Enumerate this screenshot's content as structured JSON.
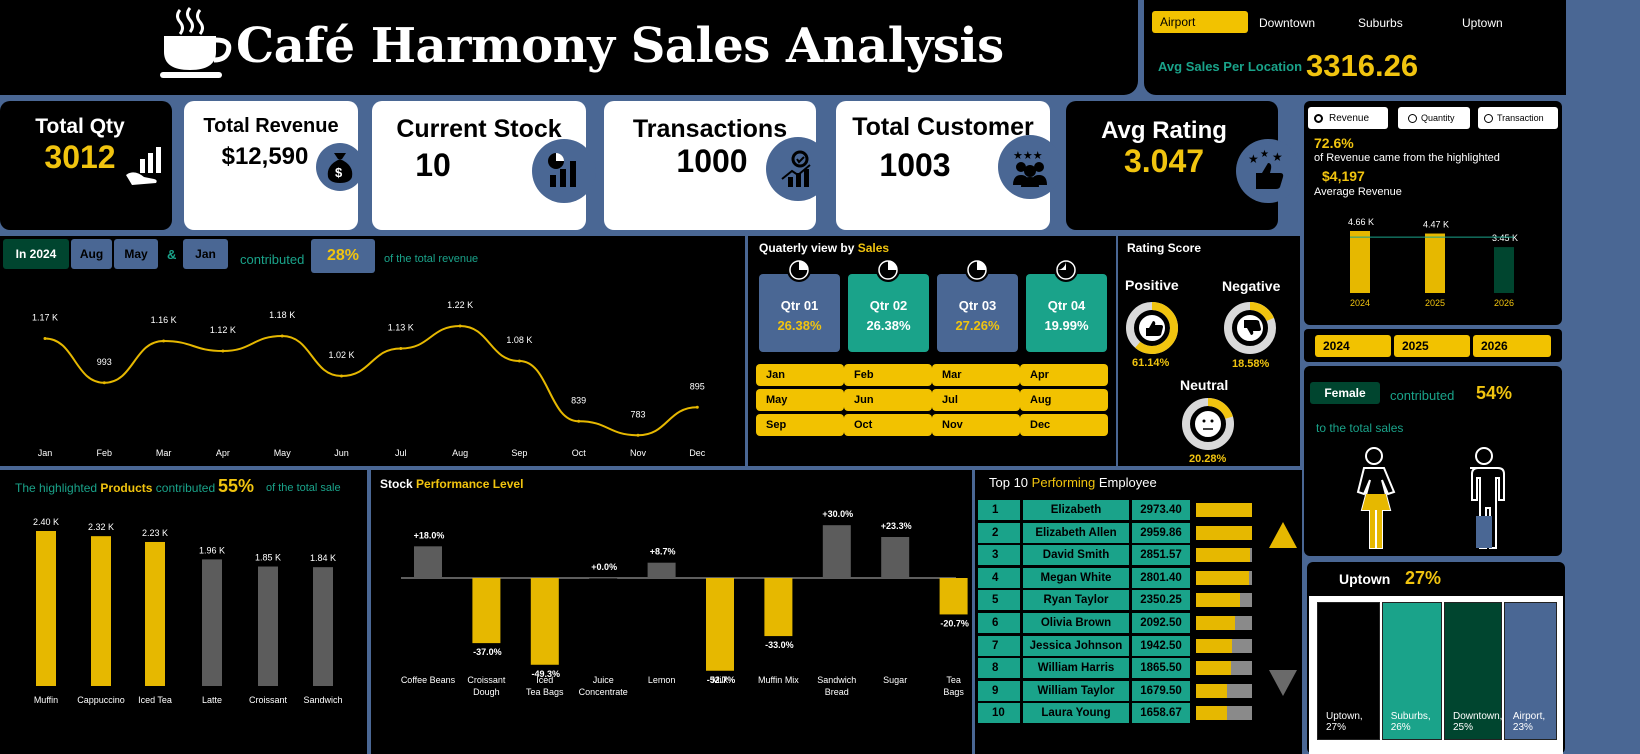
{
  "header": {
    "title": "Café Harmony Sales Analysis"
  },
  "location_filter": {
    "items": [
      "Airport",
      "Downtown",
      "Suburbs",
      "Uptown"
    ],
    "selected": "Airport",
    "avg_label": "Avg Sales Per Location",
    "avg_value": "3316.26"
  },
  "kpis": {
    "total_qty": {
      "label": "Total Qty",
      "value": "3012"
    },
    "total_revenue": {
      "label": "Total Revenue",
      "value": "$12,590"
    },
    "current_stock": {
      "label": "Current Stock",
      "value": "10"
    },
    "transactions": {
      "label": "Transactions",
      "value": "1000"
    },
    "total_customer": {
      "label": "Total Customer",
      "value": "1003"
    },
    "avg_rating": {
      "label": "Avg Rating",
      "value": "3.047"
    }
  },
  "monthly": {
    "year_chip": "In 2024",
    "month_chips": [
      "Aug",
      "May",
      "Jan"
    ],
    "amp": "&",
    "contributed": "contributed",
    "percent": "28%",
    "suffix": "of the total revenue"
  },
  "quarterly": {
    "title_prefix": "Quaterly view by",
    "title_highlight": "Sales",
    "quarters": [
      {
        "label": "Qtr 01",
        "value": "26.38%",
        "color": "#4a6794"
      },
      {
        "label": "Qtr 02",
        "value": "26.38%",
        "color": "#1aa38a"
      },
      {
        "label": "Qtr 03",
        "value": "27.26%",
        "color": "#4a6794"
      },
      {
        "label": "Qtr 04",
        "value": "19.99%",
        "color": "#1aa38a"
      }
    ],
    "months": [
      "Jan",
      "Feb",
      "Mar",
      "Apr",
      "May",
      "Jun",
      "Jul",
      "Aug",
      "Sep",
      "Oct",
      "Nov",
      "Dec"
    ]
  },
  "rating": {
    "title": "Rating Score",
    "positive": {
      "label": "Positive",
      "value": "61.14%",
      "fraction": 0.6114
    },
    "negative": {
      "label": "Negative",
      "value": "18.58%",
      "fraction": 0.1858
    },
    "neutral": {
      "label": "Neutral",
      "value": "20.28%",
      "fraction": 0.2028
    }
  },
  "measure_toggle": {
    "items": [
      "Revenue",
      "Quantity",
      "Transaction"
    ],
    "selected": "Revenue",
    "pct": "72.6%",
    "pct_text": "of Revenue came from the highlighted",
    "avg": "$4,197",
    "avg_text": "Average Revenue"
  },
  "year_filter": {
    "items": [
      "2024",
      "2025",
      "2026"
    ]
  },
  "gender": {
    "chip": "Female",
    "contributed": "contributed",
    "percent": "54%",
    "suffix": "to the total sales"
  },
  "location_share": {
    "label": "Uptown",
    "percent": "27%"
  },
  "products": {
    "prefix": "The highlighted",
    "highlight": "Products",
    "contributed": "contributed",
    "percent": "55%",
    "suffix": "of the total sale"
  },
  "stock": {
    "title_prefix": "Stock",
    "title_highlight": "Performance Level"
  },
  "employees": {
    "title_prefix": "Top 10",
    "title_highlight": "Performing",
    "title_suffix": "Employee",
    "rows": [
      {
        "rank": "1",
        "name": "Elizabeth",
        "value": "2973.40",
        "fraction": 1.0
      },
      {
        "rank": "2",
        "name": "Elizabeth Allen",
        "value": "2959.86",
        "fraction": 0.995
      },
      {
        "rank": "3",
        "name": "David Smith",
        "value": "2851.57",
        "fraction": 0.96
      },
      {
        "rank": "4",
        "name": "Megan White",
        "value": "2801.40",
        "fraction": 0.94
      },
      {
        "rank": "5",
        "name": "Ryan Taylor",
        "value": "2350.25",
        "fraction": 0.79
      },
      {
        "rank": "6",
        "name": "Olivia Brown",
        "value": "2092.50",
        "fraction": 0.7
      },
      {
        "rank": "7",
        "name": "Jessica Johnson",
        "value": "1942.50",
        "fraction": 0.65
      },
      {
        "rank": "8",
        "name": "William Harris",
        "value": "1865.50",
        "fraction": 0.63
      },
      {
        "rank": "9",
        "name": "William Taylor",
        "value": "1679.50",
        "fraction": 0.56
      },
      {
        "rank": "10",
        "name": "Laura Young",
        "value": "1658.67",
        "fraction": 0.56
      }
    ]
  },
  "chart_data": [
    {
      "type": "line",
      "categories": [
        "Jan",
        "Feb",
        "Mar",
        "Apr",
        "May",
        "Jun",
        "Jul",
        "Aug",
        "Sep",
        "Oct",
        "Nov",
        "Dec"
      ],
      "values": [
        1170,
        993,
        1160,
        1120,
        1180,
        1020,
        1130,
        1220,
        1080,
        839,
        783,
        895
      ],
      "labels": [
        "1.17 K",
        "993",
        "1.16 K",
        "1.12 K",
        "1.18 K",
        "1.02 K",
        "1.13 K",
        "1.22 K",
        "1.08 K",
        "839",
        "783",
        "895"
      ],
      "color": "#e6b800"
    },
    {
      "type": "bar",
      "categories": [
        "2024",
        "2025",
        "2026"
      ],
      "values": [
        4660,
        4470,
        3450
      ],
      "labels": [
        "4.66 K",
        "4.47 K",
        "3.45 K"
      ],
      "colors": [
        "#e6b800",
        "#e6b800",
        "#00452f"
      ],
      "average": 4197
    },
    {
      "type": "bar",
      "categories": [
        "Muffin",
        "Cappuccino",
        "Iced Tea",
        "Latte",
        "Croissant",
        "Sandwich"
      ],
      "values": [
        2400,
        2320,
        2230,
        1960,
        1850,
        1840
      ],
      "labels": [
        "2.40 K",
        "2.32 K",
        "2.23 K",
        "1.96 K",
        "1.85 K",
        "1.84 K"
      ],
      "colors": [
        "#e6b800",
        "#e6b800",
        "#e6b800",
        "#5c5c5c",
        "#5c5c5c",
        "#5c5c5c"
      ]
    },
    {
      "type": "bar",
      "categories": [
        "Coffee Beans",
        "Croissant Dough",
        "Iced Tea Bags",
        "Juice Concentrate",
        "Lemon",
        "Milk",
        "Muffin Mix",
        "Sandwich Bread",
        "Sugar",
        "Tea Bags"
      ],
      "values": [
        18.0,
        -37.0,
        -49.3,
        0.0,
        8.7,
        -52.7,
        -33.0,
        30.0,
        23.3,
        -20.7
      ],
      "labels": [
        "+18.0%",
        "-37.0%",
        "-49.3%",
        "+0.0%",
        "+8.7%",
        "-52.7%",
        "-33.0%",
        "+30.0%",
        "+23.3%",
        "-20.7%"
      ]
    },
    {
      "type": "table",
      "categories": [
        "Uptown, 27%",
        "Suburbs, 26%",
        "Downtown, 25%",
        "Airport, 23%"
      ],
      "values": [
        27,
        26,
        25,
        23
      ],
      "colors": [
        "#000000",
        "#1aa38a",
        "#00452f",
        "#4a6794"
      ]
    }
  ]
}
